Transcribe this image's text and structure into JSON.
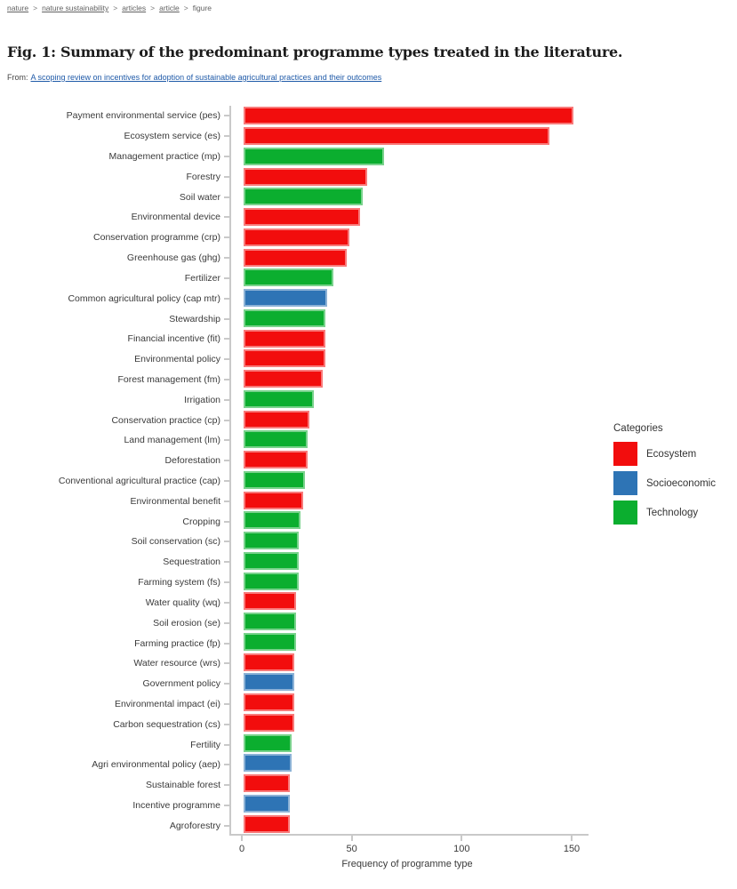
{
  "breadcrumb": {
    "separator": ">",
    "links": [
      "nature",
      "nature sustainability",
      "articles",
      "article"
    ],
    "current": "figure"
  },
  "figure": {
    "title": "Fig. 1: Summary of the predominant programme types treated in the literature.",
    "from_label": "From:",
    "source_link_text": "A scoping review on incentives for adoption of sustainable agricultural practices and their outcomes"
  },
  "chart_data": {
    "type": "bar",
    "orientation": "horizontal",
    "xlabel": "Frequency of programme type",
    "x_ticks": [
      0,
      50,
      100,
      150
    ],
    "xlim": [
      0,
      157
    ],
    "grid": false,
    "legend": {
      "title": "Categories",
      "position": "right",
      "entries": [
        {
          "label": "Ecosystem",
          "color": "#F20D0D"
        },
        {
          "label": "Socioeconomic",
          "color": "#2E74B5"
        },
        {
          "label": "Technology",
          "color": "#0BAE2F"
        }
      ]
    },
    "bars": [
      {
        "label": "Payment environmental service (pes)",
        "value": 150,
        "category": "Ecosystem"
      },
      {
        "label": "Ecosystem service (es)",
        "value": 139,
        "category": "Ecosystem"
      },
      {
        "label": "Management practice (mp)",
        "value": 64,
        "category": "Technology"
      },
      {
        "label": "Forestry",
        "value": 56,
        "category": "Ecosystem"
      },
      {
        "label": "Soil water",
        "value": 54,
        "category": "Technology"
      },
      {
        "label": "Environmental device",
        "value": 53,
        "category": "Ecosystem"
      },
      {
        "label": "Conservation programme (crp)",
        "value": 48,
        "category": "Ecosystem"
      },
      {
        "label": "Greenhouse gas (ghg)",
        "value": 47,
        "category": "Ecosystem"
      },
      {
        "label": "Fertilizer",
        "value": 41,
        "category": "Technology"
      },
      {
        "label": "Common agricultural policy (cap mtr)",
        "value": 38,
        "category": "Socioeconomic"
      },
      {
        "label": "Stewardship",
        "value": 37,
        "category": "Technology"
      },
      {
        "label": "Financial incentive (fit)",
        "value": 37,
        "category": "Ecosystem"
      },
      {
        "label": "Environmental policy",
        "value": 37,
        "category": "Ecosystem"
      },
      {
        "label": "Forest management (fm)",
        "value": 36,
        "category": "Ecosystem"
      },
      {
        "label": "Irrigation",
        "value": 32,
        "category": "Technology"
      },
      {
        "label": "Conservation practice (cp)",
        "value": 30,
        "category": "Ecosystem"
      },
      {
        "label": "Land management (lm)",
        "value": 29,
        "category": "Technology"
      },
      {
        "label": "Deforestation",
        "value": 29,
        "category": "Ecosystem"
      },
      {
        "label": "Conventional agricultural practice (cap)",
        "value": 28,
        "category": "Technology"
      },
      {
        "label": "Environmental benefit",
        "value": 27,
        "category": "Ecosystem"
      },
      {
        "label": "Cropping",
        "value": 26,
        "category": "Technology"
      },
      {
        "label": "Soil conservation (sc)",
        "value": 25,
        "category": "Technology"
      },
      {
        "label": "Sequestration",
        "value": 25,
        "category": "Technology"
      },
      {
        "label": "Farming system (fs)",
        "value": 25,
        "category": "Technology"
      },
      {
        "label": "Water quality (wq)",
        "value": 24,
        "category": "Ecosystem"
      },
      {
        "label": "Soil erosion (se)",
        "value": 24,
        "category": "Technology"
      },
      {
        "label": "Farming practice (fp)",
        "value": 24,
        "category": "Technology"
      },
      {
        "label": "Water resource (wrs)",
        "value": 23,
        "category": "Ecosystem"
      },
      {
        "label": "Government policy",
        "value": 23,
        "category": "Socioeconomic"
      },
      {
        "label": "Environmental impact (ei)",
        "value": 23,
        "category": "Ecosystem"
      },
      {
        "label": "Carbon sequestration (cs)",
        "value": 23,
        "category": "Ecosystem"
      },
      {
        "label": "Fertility",
        "value": 22,
        "category": "Technology"
      },
      {
        "label": "Agri environmental policy (aep)",
        "value": 22,
        "category": "Socioeconomic"
      },
      {
        "label": "Sustainable forest",
        "value": 21,
        "category": "Ecosystem"
      },
      {
        "label": "Incentive programme",
        "value": 21,
        "category": "Socioeconomic"
      },
      {
        "label": "Agroforestry",
        "value": 21,
        "category": "Ecosystem"
      }
    ]
  },
  "colors": {
    "axis": "#C9C9C9",
    "ecosystem": "#F20D0D",
    "socioeconomic": "#2E74B5",
    "technology": "#0BAE2F"
  }
}
